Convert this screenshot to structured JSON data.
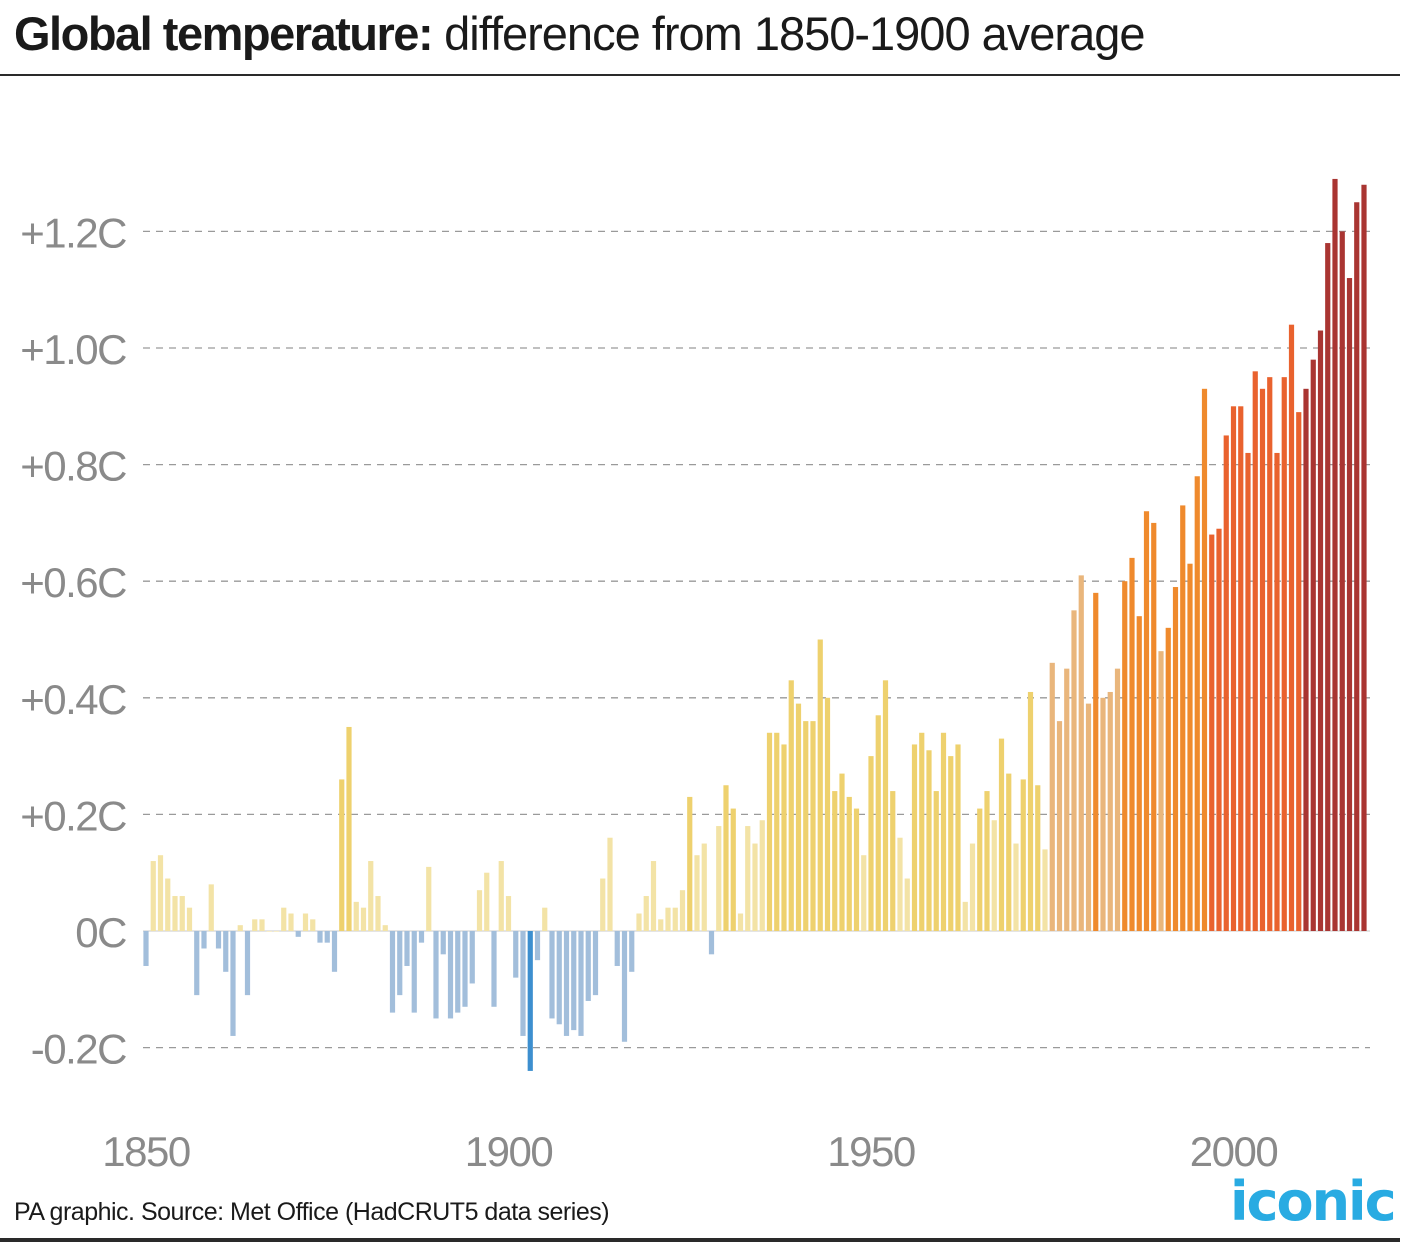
{
  "title": {
    "bold": "Global temperature:",
    "rest": " difference from 1850-1900 average"
  },
  "source": "PA graphic. Source: Met Office (HadCRUT5 data series)",
  "logo": "iconic",
  "colors": {
    "cold_strong": "#3d8fcf",
    "cold": "#a2bedb",
    "warm_pale": "#f3e3a6",
    "warm_yellow": "#eed16e",
    "warm_tan": "#e9b67c",
    "orange": "#ef8a2d",
    "red_orange": "#e9622e",
    "dark_red": "#a93532",
    "grid": "#9a9a9a",
    "tick_text": "#8a8a8a",
    "logo": "#29abe2"
  },
  "chart_data": {
    "type": "bar",
    "title": "Global temperature: difference from 1850-1900 average",
    "xlabel": "",
    "ylabel": "",
    "ylim": [
      -0.29,
      1.3
    ],
    "xlim": [
      1850,
      2020
    ],
    "grid": true,
    "y_ticks": [
      {
        "value": -0.2,
        "label": "-0.2C"
      },
      {
        "value": 0,
        "label": "0C"
      },
      {
        "value": 0.2,
        "label": "+0.2C"
      },
      {
        "value": 0.4,
        "label": "+0.4C"
      },
      {
        "value": 0.6,
        "label": "+0.6C"
      },
      {
        "value": 0.8,
        "label": "+0.8C"
      },
      {
        "value": 1.0,
        "label": "+1.0C"
      },
      {
        "value": 1.2,
        "label": "+1.2C"
      }
    ],
    "x_ticks": [
      {
        "value": 1850,
        "label": "1850"
      },
      {
        "value": 1900,
        "label": "1900"
      },
      {
        "value": 1950,
        "label": "1950"
      },
      {
        "value": 2000,
        "label": "2000"
      }
    ],
    "start_year": 1850,
    "values": [
      -0.06,
      0.12,
      0.13,
      0.09,
      0.06,
      0.06,
      0.04,
      -0.11,
      -0.03,
      0.08,
      -0.03,
      -0.07,
      -0.18,
      0.01,
      -0.11,
      0.02,
      0.02,
      0.0,
      0.0,
      0.04,
      0.03,
      -0.01,
      0.03,
      0.02,
      -0.02,
      -0.02,
      -0.07,
      0.26,
      0.35,
      0.05,
      0.04,
      0.12,
      0.06,
      0.01,
      -0.14,
      -0.11,
      -0.06,
      -0.14,
      -0.02,
      0.11,
      -0.15,
      -0.04,
      -0.15,
      -0.14,
      -0.13,
      -0.09,
      0.07,
      0.1,
      -0.13,
      0.12,
      0.06,
      -0.08,
      -0.18,
      -0.24,
      -0.05,
      0.04,
      -0.15,
      -0.16,
      -0.18,
      -0.17,
      -0.18,
      -0.12,
      -0.11,
      0.09,
      0.16,
      -0.06,
      -0.19,
      -0.07,
      0.03,
      0.06,
      0.12,
      0.02,
      0.04,
      0.04,
      0.07,
      0.23,
      0.13,
      0.15,
      -0.04,
      0.18,
      0.25,
      0.21,
      0.03,
      0.18,
      0.15,
      0.19,
      0.34,
      0.34,
      0.32,
      0.43,
      0.39,
      0.36,
      0.36,
      0.5,
      0.4,
      0.24,
      0.27,
      0.23,
      0.21,
      0.13,
      0.3,
      0.37,
      0.43,
      0.24,
      0.16,
      0.09,
      0.32,
      0.34,
      0.31,
      0.24,
      0.34,
      0.3,
      0.32,
      0.05,
      0.15,
      0.21,
      0.24,
      0.19,
      0.33,
      0.27,
      0.15,
      0.26,
      0.41,
      0.25,
      0.14,
      0.46,
      0.36,
      0.45,
      0.55,
      0.61,
      0.39,
      0.58,
      0.4,
      0.41,
      0.45,
      0.6,
      0.64,
      0.54,
      0.72,
      0.7,
      0.48,
      0.52,
      0.59,
      0.73,
      0.63,
      0.78,
      0.93,
      0.68,
      0.69,
      0.85,
      0.9,
      0.9,
      0.82,
      0.96,
      0.93,
      0.95,
      0.82,
      0.95,
      1.04,
      0.89,
      0.93,
      0.98,
      1.03,
      1.18,
      1.29,
      1.2,
      1.12,
      1.25,
      1.28
    ]
  }
}
